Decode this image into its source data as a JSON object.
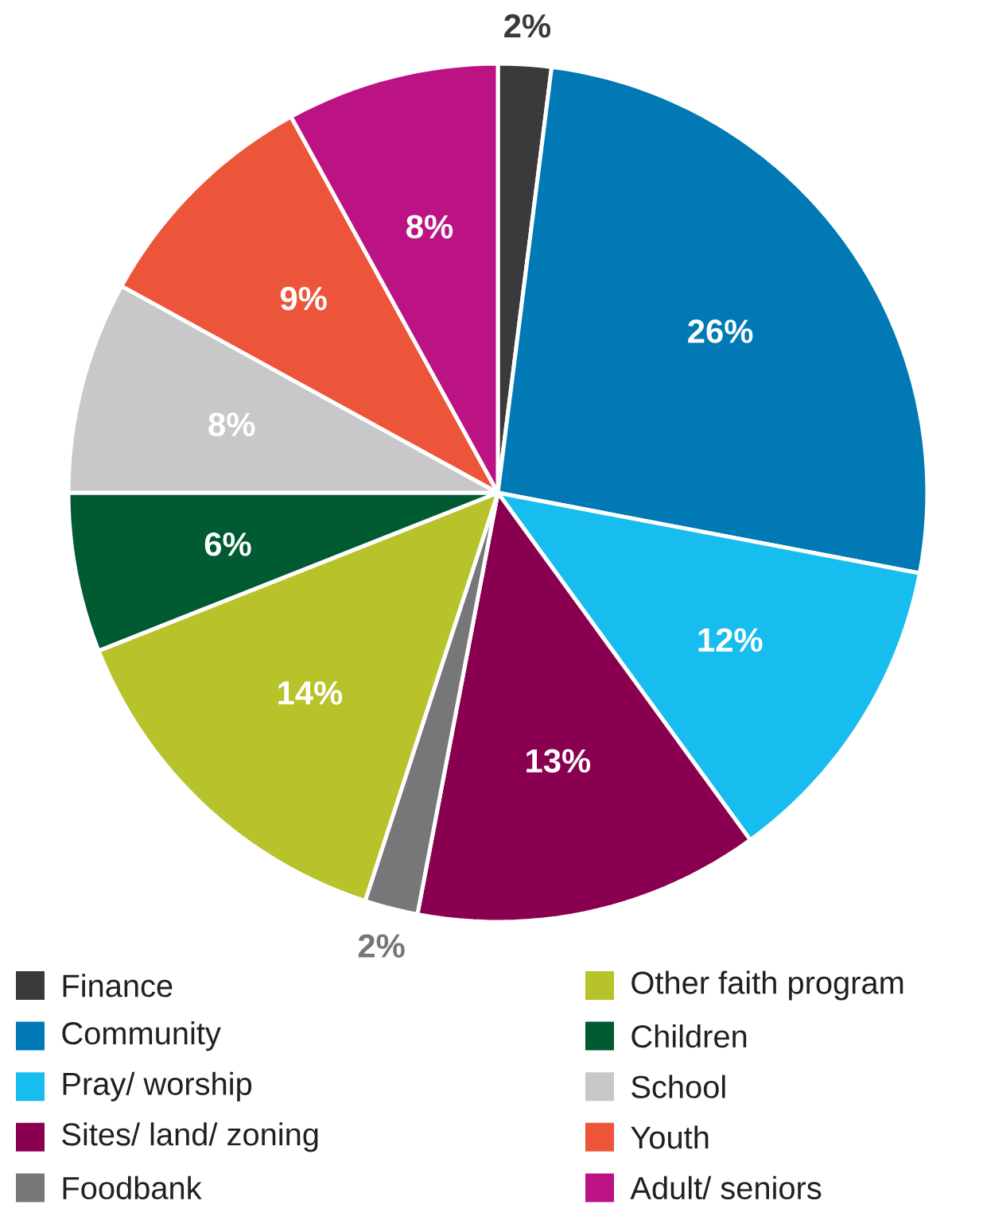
{
  "chart_data": {
    "type": "pie",
    "categories": [
      "Finance",
      "Community",
      "Pray/ worship",
      "Sites/ land/ zoning",
      "Foodbank",
      "Other faith program",
      "Children",
      "School",
      "Youth",
      "Adult/ seniors"
    ],
    "values": [
      2,
      26,
      12,
      13,
      2,
      14,
      6,
      8,
      9,
      8
    ],
    "value_labels": [
      "2%",
      "26%",
      "12%",
      "13%",
      "2%",
      "14%",
      "6%",
      "8%",
      "9%",
      "8%"
    ],
    "colors": [
      "#3a3a3c",
      "#0079b5",
      "#17bdef",
      "#8a0051",
      "#77777a",
      "#b8c22a",
      "#005a32",
      "#c8c8ca",
      "#ec553a",
      "#bb1384"
    ],
    "legend": "bottom"
  }
}
